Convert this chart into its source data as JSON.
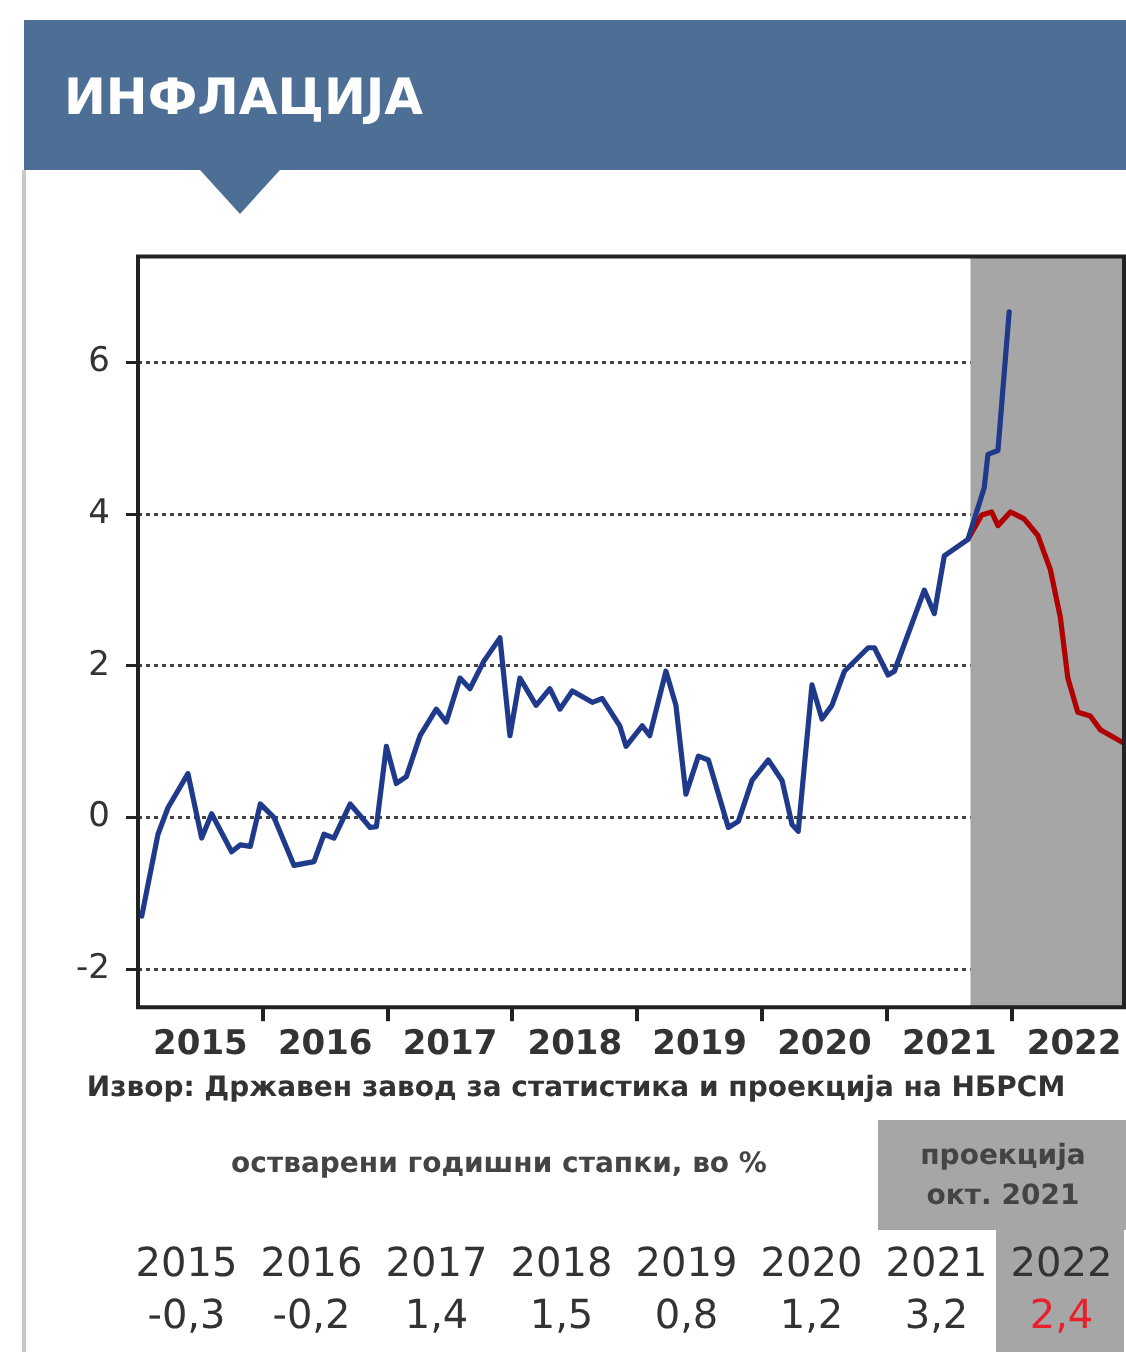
{
  "chart_data": {
    "type": "line",
    "title": "ИНФЛАЦИЈА",
    "annotations": [
      "Извор: Државен завод за статистика и проекција на НБРСМ",
      "остварени годишни стапки, во %",
      "проекција окт. 2021",
      "2015 -0,3",
      "2016 -0,2",
      "2017 1,4",
      "2018 1,5",
      "2019 0,8",
      "2020 1,2",
      "2021 3,2",
      "2022 2,4"
    ],
    "xlim": [
      2015,
      2022.9
    ],
    "ylim": [
      -2.5,
      7.4
    ],
    "xticks": [
      {
        "value": 2015.5,
        "label": "2015"
      },
      {
        "value": 2016,
        "label": null
      },
      {
        "value": 2016.5,
        "label": "2016"
      },
      {
        "value": 2017,
        "label": null
      },
      {
        "value": 2017.5,
        "label": "2017"
      },
      {
        "value": 2018,
        "label": null
      },
      {
        "value": 2018.5,
        "label": "2018"
      },
      {
        "value": 2019,
        "label": null
      },
      {
        "value": 2019.5,
        "label": "2019"
      },
      {
        "value": 2020,
        "label": null
      },
      {
        "value": 2020.5,
        "label": "2020"
      },
      {
        "value": 2021,
        "label": null
      },
      {
        "value": 2021.5,
        "label": "2021"
      },
      {
        "value": 2022,
        "label": null
      },
      {
        "value": 2022.5,
        "label": "2022"
      }
    ],
    "yticks": [
      -2,
      0,
      2,
      4,
      6
    ],
    "grid": "y",
    "legend": false,
    "marker": "none",
    "line_style": "solid",
    "bands": [
      {
        "axis": "x",
        "from": 2021.67,
        "to": 2022.9,
        "color": "#a6a6a6"
      }
    ],
    "series": [
      {
        "color": "#1f3a8a",
        "x": [
          2015.03,
          2015.16,
          2015.24,
          2015.4,
          2015.51,
          2015.59,
          2015.75,
          2015.82,
          2015.9,
          2015.98,
          2016.09,
          2016.25,
          2016.41,
          2016.49,
          2016.57,
          2016.7,
          2016.86,
          2016.91,
          2016.99,
          2017.07,
          2017.15,
          2017.26,
          2017.39,
          2017.47,
          2017.58,
          2017.66,
          2017.77,
          2017.9,
          2017.98,
          2018.06,
          2018.19,
          2018.3,
          2018.38,
          2018.48,
          2018.64,
          2018.72,
          2018.86,
          2018.91,
          2019.04,
          2019.1,
          2019.23,
          2019.31,
          2019.39,
          2019.49,
          2019.57,
          2019.73,
          2019.81,
          2019.92,
          2020.05,
          2020.16,
          2020.24,
          2020.29,
          2020.4,
          2020.48,
          2020.56,
          2020.66,
          2020.85,
          2020.9,
          2021.01,
          2021.06,
          2021.3,
          2021.38,
          2021.46,
          2021.65,
          2021.78,
          2021.81,
          2021.89,
          2021.98
        ],
        "values": [
          -1.3,
          -0.22,
          0.13,
          0.58,
          -0.27,
          0.05,
          -0.45,
          -0.36,
          -0.38,
          0.18,
          0,
          -0.63,
          -0.58,
          -0.22,
          -0.27,
          0.18,
          -0.13,
          -0.12,
          0.94,
          0.45,
          0.54,
          1.08,
          1.43,
          1.26,
          1.84,
          1.7,
          2.06,
          2.37,
          1.08,
          1.84,
          1.48,
          1.7,
          1.43,
          1.67,
          1.52,
          1.57,
          1.21,
          0.94,
          1.21,
          1.08,
          1.93,
          1.48,
          0.31,
          0.81,
          0.76,
          -0.13,
          -0.05,
          0.49,
          0.76,
          0.49,
          -0.09,
          -0.18,
          1.75,
          1.3,
          1.48,
          1.93,
          2.24,
          2.24,
          1.88,
          1.93,
          3,
          2.69,
          3.45,
          3.67,
          4.35,
          4.79,
          4.84,
          6.67
        ]
      },
      {
        "color": "#b00000",
        "x": [
          2021.65,
          2021.76,
          2021.84,
          2021.89,
          2021.99,
          2022.1,
          2022.21,
          2022.31,
          2022.39,
          2022.45,
          2022.53,
          2022.63,
          2022.71,
          2022.89
        ],
        "values": [
          3.67,
          3.99,
          4.03,
          3.85,
          4.03,
          3.94,
          3.72,
          3.27,
          2.64,
          1.84,
          1.39,
          1.34,
          1.16,
          0.99
        ]
      }
    ]
  }
}
